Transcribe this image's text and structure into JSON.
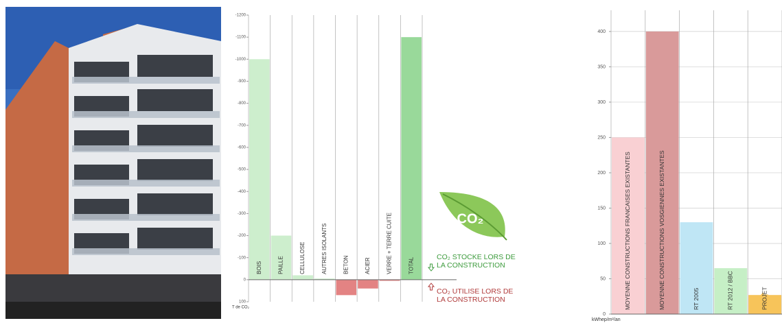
{
  "chart_data": [
    {
      "type": "bar",
      "categories": [
        "BOIS",
        "PAILLE",
        "CELLULOSE",
        "AUTRES ISOLANTS",
        "BETON",
        "ACIER",
        "VERRE + TERRE CUITE",
        "TOTAL"
      ],
      "values": [
        -1000,
        -200,
        -20,
        -5,
        70,
        40,
        5,
        -1100
      ],
      "colors": [
        "#cdeecd",
        "#cdeecd",
        "#cdeecd",
        "#cdeecd",
        "#e38383",
        "#e38383",
        "#e38383",
        "#99d99a"
      ],
      "ylim": [
        100,
        -1200
      ],
      "yticks": [
        -1200,
        -1100,
        -1000,
        -900,
        -800,
        -700,
        -600,
        -500,
        -400,
        -300,
        -200,
        -100,
        0,
        100
      ],
      "ylabel": "T de CO₂",
      "logo_text": "CO₂",
      "annotations": [
        {
          "lines": [
            "CO₂ STOCKE LORS DE",
            "LA CONSTRUCTION"
          ],
          "color": "#3d9b3d"
        },
        {
          "lines": [
            "CO₂ UTILISE LORS DE",
            "LA CONSTRUCTION"
          ],
          "color": "#b03a3a"
        }
      ],
      "grid": false
    },
    {
      "type": "bar",
      "categories": [
        "MOYENNE CONSTRUCTIONS FRANCAISES EXISTANTES",
        "MOYENNE CONSTRUCTIONS VOSGIENNES EXISTANTES",
        "RT 2005",
        "RT 2012 / BBC",
        "PROJET"
      ],
      "values": [
        250,
        400,
        130,
        65,
        27
      ],
      "colors": [
        "#f9d0d3",
        "#d99a9a",
        "#bfe6f5",
        "#c6efc6",
        "#f7c45a"
      ],
      "ylim": [
        0,
        430
      ],
      "yticks": [
        0,
        50,
        100,
        150,
        200,
        250,
        300,
        350,
        400
      ],
      "ylabel": "kWhep/m²/an",
      "grid": true
    }
  ]
}
